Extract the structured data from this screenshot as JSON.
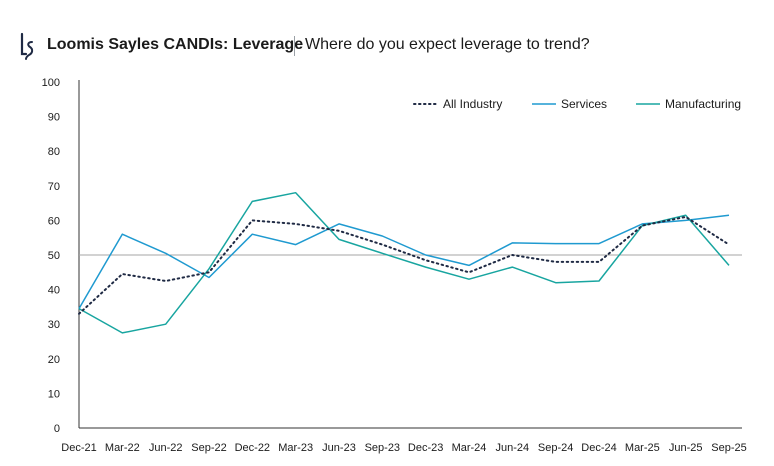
{
  "header": {
    "logo_icon": "ls-monogram-icon",
    "title": "Loomis Sayles CANDIs: Leverage",
    "subtitle": "Where do you expect leverage to trend?"
  },
  "colors": {
    "all_industry": "#1f2a44",
    "services": "#1f9ad0",
    "manufacturing": "#18a5a0",
    "axis": "#333333",
    "reference_line": "#a6a6a6"
  },
  "chart_data": {
    "type": "line",
    "title": "",
    "xlabel": "",
    "ylabel": "",
    "x": [
      "Dec-21",
      "Mar-22",
      "Jun-22",
      "Sep-22",
      "Dec-22",
      "Mar-23",
      "Jun-23",
      "Sep-23",
      "Dec-23",
      "Mar-24",
      "Jun-24",
      "Sep-24",
      "Dec-24",
      "Mar-25",
      "Jun-25",
      "Sep-25"
    ],
    "ylim": [
      0,
      100
    ],
    "yticks": [
      0,
      10,
      20,
      30,
      40,
      50,
      60,
      70,
      80,
      90,
      100
    ],
    "reference_line": 50,
    "grid": false,
    "legend_position": "top-right",
    "series": [
      {
        "name": "All Industry",
        "style": "dotted",
        "values": [
          33,
          44.5,
          42.5,
          45,
          60,
          59,
          57,
          53,
          48.5,
          45,
          50,
          48,
          48,
          58.5,
          61,
          53
        ]
      },
      {
        "name": "Services",
        "style": "solid",
        "values": [
          34.5,
          56,
          50.5,
          43.5,
          56,
          53,
          59,
          55.5,
          50,
          47,
          53.5,
          53.3,
          53.3,
          59,
          60,
          61.5
        ]
      },
      {
        "name": "Manufacturing",
        "style": "solid",
        "values": [
          34.5,
          27.5,
          30,
          46,
          65.5,
          68,
          54.5,
          50.5,
          46.5,
          43,
          46.5,
          42,
          42.5,
          58.5,
          61.5,
          47
        ]
      }
    ]
  }
}
